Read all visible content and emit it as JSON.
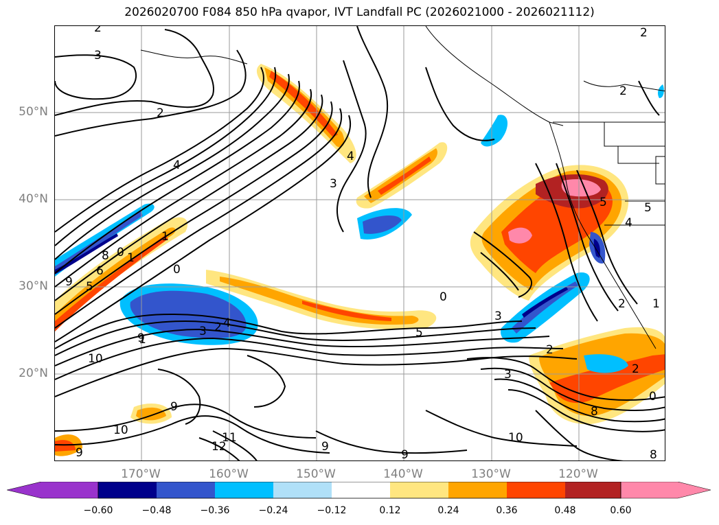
{
  "title": "2026020700 F084 850 hPa qvapor, IVT Landfall PC (2026021000 - 2026021112)",
  "latitude_labels": [
    "50°N",
    "40°N",
    "30°N",
    "20°N"
  ],
  "longitude_labels": [
    "170°W",
    "160°W",
    "150°W",
    "140°W",
    "130°W",
    "120°W"
  ],
  "colorbar": {
    "ticks": [
      "−0.60",
      "−0.48",
      "−0.36",
      "−0.24",
      "−0.12",
      "0.12",
      "0.24",
      "0.36",
      "0.48",
      "0.60"
    ],
    "colors": [
      "#9933cc",
      "#00008b",
      "#3355cc",
      "#00bfff",
      "#b0e0f8",
      "#ffffff",
      "#ffe680",
      "#ffa500",
      "#ff4500",
      "#b22222",
      "#ff88aa"
    ]
  },
  "contour_labels": [
    "2",
    "3",
    "2",
    "4",
    "3",
    "4",
    "5",
    "2",
    "2",
    "1",
    "1",
    "0",
    "9",
    "8",
    "6",
    "5",
    "4",
    "3",
    "2",
    "1",
    "0",
    "9",
    "10",
    "9",
    "10",
    "11",
    "12",
    "9",
    "9",
    "9",
    "5",
    "3",
    "2",
    "3",
    "2",
    "8",
    "10",
    "5",
    "4",
    "2",
    "1",
    "0",
    "0",
    "8"
  ]
}
